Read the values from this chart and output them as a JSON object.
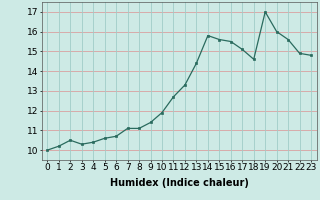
{
  "x": [
    0,
    1,
    2,
    3,
    4,
    5,
    6,
    7,
    8,
    9,
    10,
    11,
    12,
    13,
    14,
    15,
    16,
    17,
    18,
    19,
    20,
    21,
    22,
    23
  ],
  "y": [
    10.0,
    10.2,
    10.5,
    10.3,
    10.4,
    10.6,
    10.7,
    11.1,
    11.1,
    11.4,
    11.9,
    12.7,
    13.3,
    14.4,
    15.8,
    15.6,
    15.5,
    15.1,
    14.6,
    17.0,
    16.0,
    15.6,
    14.9,
    14.8
  ],
  "xlabel": "Humidex (Indice chaleur)",
  "ylim": [
    9.5,
    17.5
  ],
  "xlim": [
    -0.5,
    23.5
  ],
  "yticks": [
    10,
    11,
    12,
    13,
    14,
    15,
    16,
    17
  ],
  "xticks": [
    0,
    1,
    2,
    3,
    4,
    5,
    6,
    7,
    8,
    9,
    10,
    11,
    12,
    13,
    14,
    15,
    16,
    17,
    18,
    19,
    20,
    21,
    22,
    23
  ],
  "line_color": "#2a6b5e",
  "marker_color": "#2a6b5e",
  "bg_color": "#cdeae5",
  "grid_color_h": "#d9a0a0",
  "grid_color_v": "#a0cdc8",
  "xlabel_fontsize": 7,
  "tick_fontsize": 6.5
}
